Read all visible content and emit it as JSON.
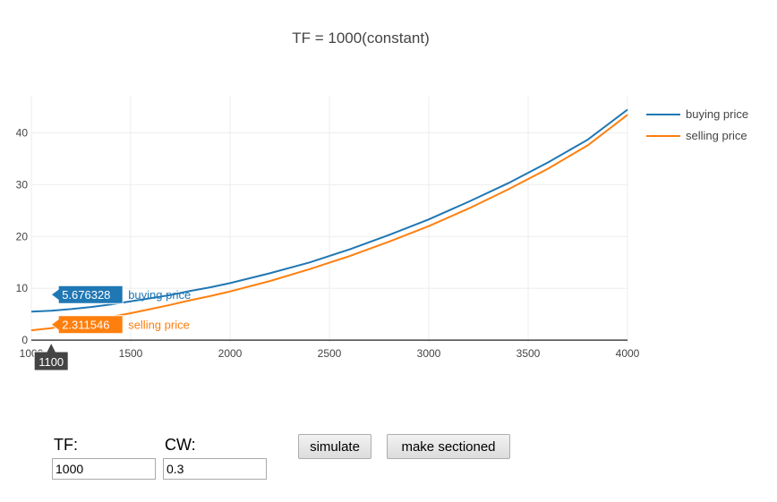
{
  "chart_data": {
    "type": "line",
    "title": "TF = 1000(constant)",
    "xlabel": "",
    "ylabel": "",
    "xlim": [
      1000,
      4000
    ],
    "ylim": [
      -0.5,
      47
    ],
    "x_ticks": [
      1000,
      1500,
      2000,
      2500,
      3000,
      3500,
      4000
    ],
    "y_ticks": [
      0,
      10,
      20,
      30,
      40
    ],
    "grid": true,
    "legend_position": "top-right",
    "series": [
      {
        "name": "buying price",
        "color": "#1f77b4",
        "x": [
          1000,
          1100,
          1200,
          1300,
          1400,
          1500,
          1600,
          1700,
          1800,
          1900,
          2000,
          2200,
          2400,
          2600,
          2800,
          3000,
          3200,
          3400,
          3600,
          3800,
          4000
        ],
        "y": [
          5.5,
          5.68,
          6.0,
          6.4,
          6.9,
          7.5,
          8.1,
          8.7,
          9.5,
          10.2,
          11.0,
          12.9,
          15.0,
          17.5,
          20.3,
          23.3,
          26.7,
          30.3,
          34.3,
          38.7,
          44.5
        ]
      },
      {
        "name": "selling price",
        "color": "#ff7f0e",
        "x": [
          1000,
          1100,
          1200,
          1300,
          1400,
          1500,
          1600,
          1700,
          1800,
          1900,
          2000,
          2200,
          2400,
          2600,
          2800,
          3000,
          3200,
          3400,
          3600,
          3800,
          4000
        ],
        "y": [
          1.9,
          2.31,
          3.0,
          3.7,
          4.5,
          5.2,
          6.0,
          6.8,
          7.7,
          8.5,
          9.4,
          11.4,
          13.7,
          16.2,
          19.0,
          22.0,
          25.4,
          29.1,
          33.1,
          37.6,
          43.5
        ]
      }
    ],
    "hover": {
      "x_label": "1100",
      "labels": [
        {
          "value": "5.676328",
          "name": "buying price",
          "color": "#1f77b4"
        },
        {
          "value": "2.311546",
          "name": "selling price",
          "color": "#ff7f0e"
        }
      ]
    }
  },
  "form": {
    "tf_label": "TF:",
    "tf_value": "1000",
    "cw_label": "CW:",
    "cw_value": "0.3",
    "simulate_label": "simulate",
    "sectioned_label": "make sectioned"
  }
}
